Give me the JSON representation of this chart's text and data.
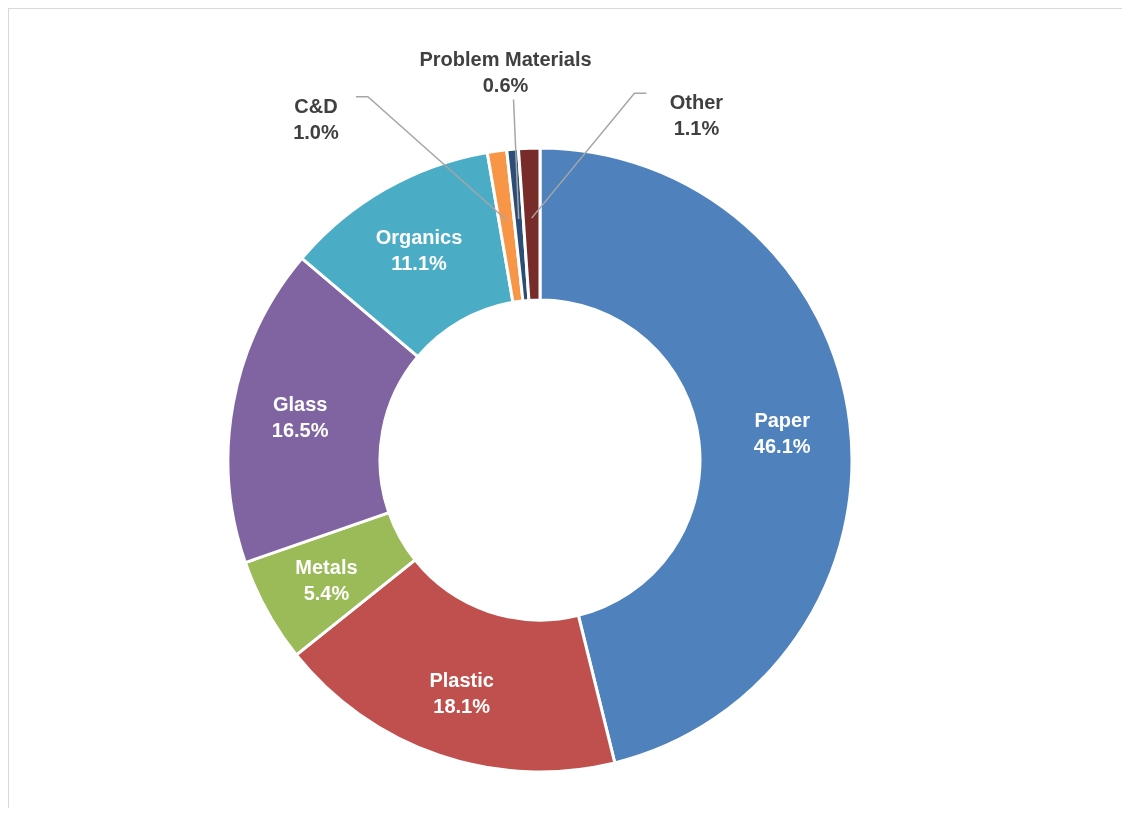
{
  "chart_data": {
    "type": "donut",
    "categories": [
      "Paper",
      "Plastic",
      "Metals",
      "Glass",
      "Organics",
      "C&D",
      "Problem Materials",
      "Other"
    ],
    "values": [
      46.1,
      18.1,
      5.4,
      16.5,
      11.1,
      1.0,
      0.6,
      1.1
    ],
    "value_labels": [
      "46.1%",
      "18.1%",
      "5.4%",
      "16.5%",
      "11.1%",
      "1.0%",
      "0.6%",
      "1.1%"
    ],
    "colors": [
      "#4f81bd",
      "#c0504d",
      "#9bbb59",
      "#8064a2",
      "#4bacc6",
      "#f79646",
      "#2c4d75",
      "#772c2a"
    ]
  }
}
